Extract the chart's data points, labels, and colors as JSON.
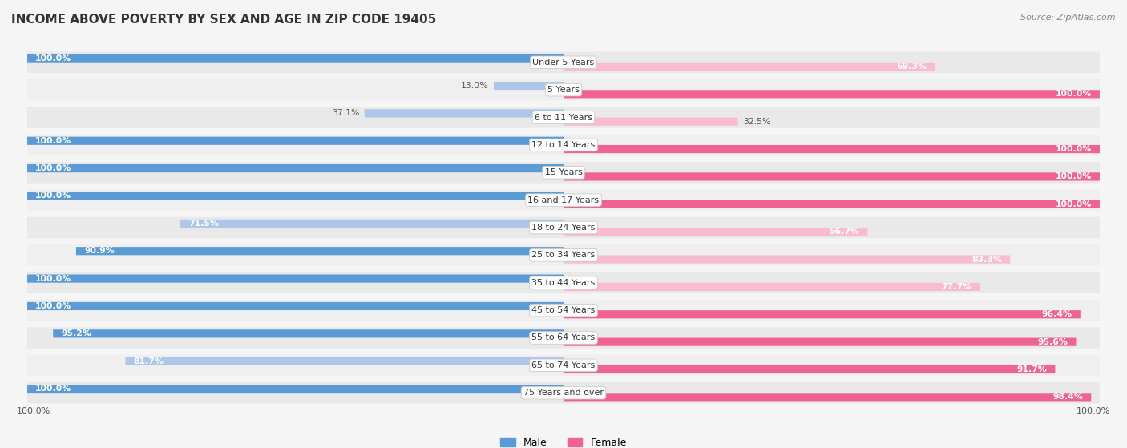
{
  "title": "INCOME ABOVE POVERTY BY SEX AND AGE IN ZIP CODE 19405",
  "source": "Source: ZipAtlas.com",
  "categories": [
    "Under 5 Years",
    "5 Years",
    "6 to 11 Years",
    "12 to 14 Years",
    "15 Years",
    "16 and 17 Years",
    "18 to 24 Years",
    "25 to 34 Years",
    "35 to 44 Years",
    "45 to 54 Years",
    "55 to 64 Years",
    "65 to 74 Years",
    "75 Years and over"
  ],
  "male_values": [
    100.0,
    13.0,
    37.1,
    100.0,
    100.0,
    100.0,
    71.5,
    90.9,
    100.0,
    100.0,
    95.2,
    81.7,
    100.0
  ],
  "female_values": [
    69.3,
    100.0,
    32.5,
    100.0,
    100.0,
    100.0,
    56.7,
    83.3,
    77.7,
    96.4,
    95.6,
    91.7,
    98.4
  ],
  "male_color_full": "#5b9bd5",
  "male_color_light": "#aec7e8",
  "female_color_full": "#f06292",
  "female_color_light": "#f8bbd0",
  "row_bg_color": "#e8e8e8",
  "bar_bg_light": "#f5f5f5",
  "background_color": "#f5f5f5",
  "legend_male": "Male",
  "legend_female": "Female",
  "max_val": 100.0
}
